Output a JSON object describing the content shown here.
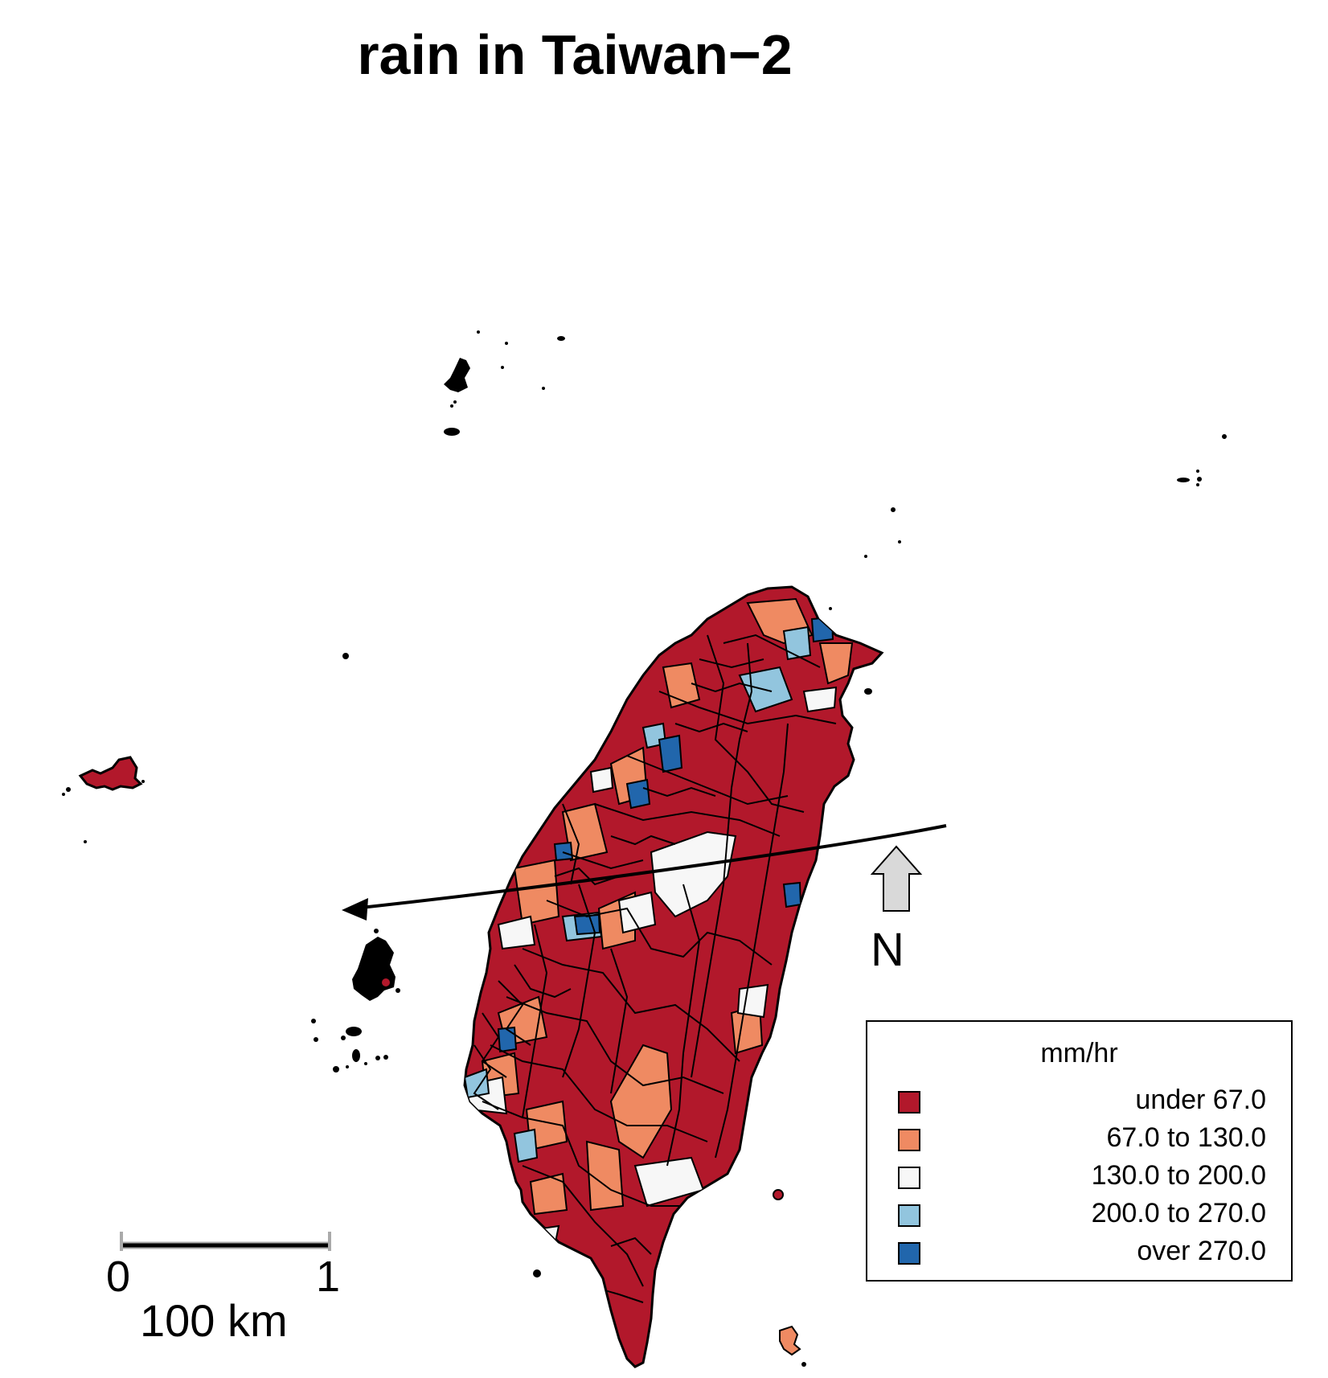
{
  "title": "rain in Taiwan−2",
  "legend": {
    "title": "mm/hr",
    "items": [
      {
        "label": "under 67.0",
        "color": "#b2182b"
      },
      {
        "label": "67.0 to 130.0",
        "color": "#ef8a62"
      },
      {
        "label": "130.0 to 200.0",
        "color": "#f7f7f7"
      },
      {
        "label": "200.0 to 270.0",
        "color": "#92c5de"
      },
      {
        "label": "over 270.0",
        "color": "#2166ac"
      }
    ]
  },
  "scale_bar": {
    "tick_start": "0",
    "tick_end": "1",
    "label": "100 km"
  },
  "north_arrow": {
    "label": "N"
  },
  "colors": {
    "under_67": "#b2182b",
    "c67_130": "#ef8a62",
    "c130_200": "#f7f7f7",
    "c200_270": "#92c5de",
    "over_270": "#2166ac",
    "outline": "#000000",
    "arrow_fill": "#d9d9d9"
  }
}
